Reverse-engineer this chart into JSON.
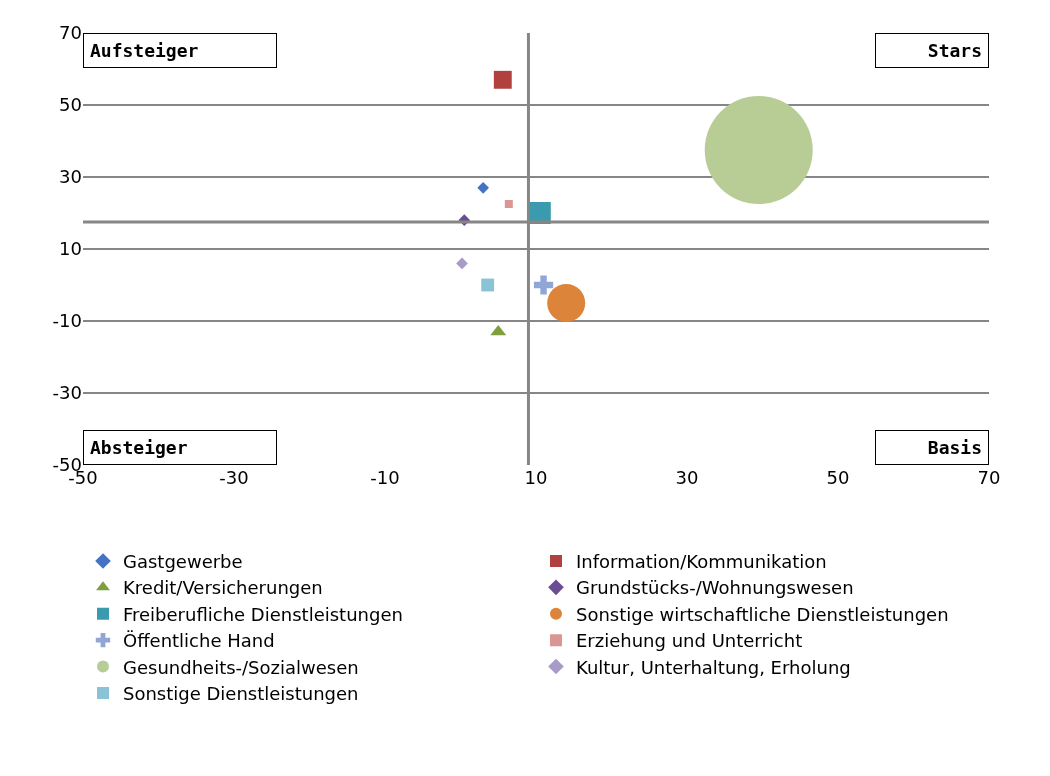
{
  "chart_data": {
    "type": "bubble",
    "xlim": [
      -50,
      70
    ],
    "xticks": [
      -50,
      -30,
      -10,
      10,
      30,
      50,
      70
    ],
    "ylim": [
      -50,
      70
    ],
    "yticks": [
      -50,
      -30,
      -10,
      10,
      30,
      50,
      70
    ],
    "grid": "y",
    "legend": "bottom",
    "series": [
      {
        "name": "Gastgewerbe",
        "color": "#4472c4",
        "marker": "diamond",
        "x": [
          3
        ],
        "values": [
          27
        ],
        "sizes": [
          0.0076
        ]
      },
      {
        "name": "Information/Kommunikation",
        "color": "#b0413e",
        "marker": "square",
        "x": [
          5.6
        ],
        "values": [
          57
        ],
        "sizes": [
          0.035
        ]
      },
      {
        "name": "Kredit/Versicherungen",
        "color": "#7f9f3f",
        "marker": "triangle",
        "x": [
          5
        ],
        "values": [
          -13
        ],
        "sizes": [
          0.009
        ]
      },
      {
        "name": "Grundstücks-/Wohnungswesen",
        "color": "#6a4c93",
        "marker": "diamond",
        "x": [
          0.5
        ],
        "values": [
          18
        ],
        "sizes": [
          0.0076
        ]
      },
      {
        "name": "Freiberufliche Dienstleistungen",
        "color": "#3c9aae",
        "marker": "square",
        "x": [
          10.5
        ],
        "values": [
          20
        ],
        "sizes": [
          0.053
        ]
      },
      {
        "name": "Sonstige wirtschaftliche Dienstleistungen",
        "color": "#dd843b",
        "marker": "circle",
        "x": [
          14
        ],
        "values": [
          -5
        ],
        "sizes": [
          0.124
        ]
      },
      {
        "name": "Öffentliche Hand",
        "color": "#8fa6d6",
        "type": "scatter",
        "marker": "cross",
        "x": [
          11
        ],
        "values": [
          0
        ]
      },
      {
        "name": "Erziehung und Unterricht",
        "color": "#d99694",
        "type": "scatter",
        "marker": "square",
        "x": [
          6.4
        ],
        "values": [
          22.5
        ]
      },
      {
        "name": "Gesundheits-/Sozialwesen",
        "color": "#b8cd96",
        "marker": "circle",
        "x": [
          39.5
        ],
        "values": [
          37.5
        ],
        "sizes": [
          1
        ]
      },
      {
        "name": "Kultur, Unterhaltung, Erholung",
        "color": "#a99bc8",
        "marker": "diamond",
        "x": [
          0.2
        ],
        "values": [
          6
        ],
        "sizes": [
          0.0076
        ]
      },
      {
        "name": "Sonstige Dienstleistungen",
        "color": "#8bc3d6",
        "marker": "square",
        "x": [
          3.6
        ],
        "values": [
          0
        ],
        "sizes": [
          0.018
        ]
      }
    ],
    "ref_lines": [
      {
        "axis": "x",
        "value": 9,
        "color": "#868686"
      },
      {
        "axis": "y",
        "value": 17.5,
        "color": "#868686"
      }
    ],
    "annotations": [
      "Aufsteiger",
      "Stars",
      "Absteiger",
      "Basis"
    ]
  }
}
